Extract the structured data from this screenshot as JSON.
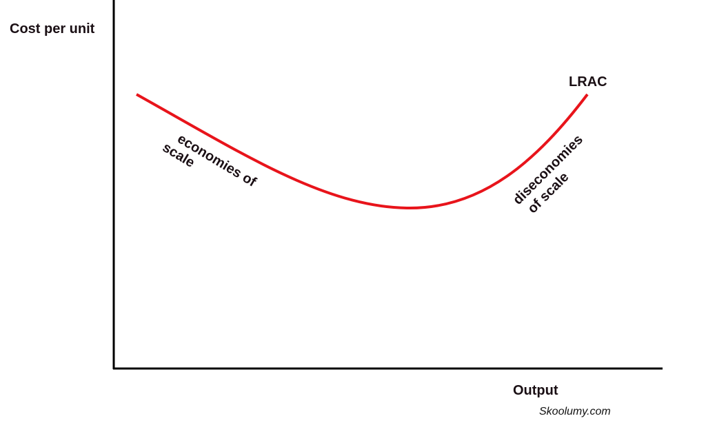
{
  "axis_labels": {
    "y": "Cost per unit",
    "x": "Output"
  },
  "curve": {
    "label": "LRAC",
    "annotations": [
      {
        "lines": [
          "economies of",
          "scale"
        ]
      },
      {
        "lines": [
          "diseconomies",
          "of scale"
        ]
      }
    ]
  },
  "watermark": "Skoolumy.com"
}
